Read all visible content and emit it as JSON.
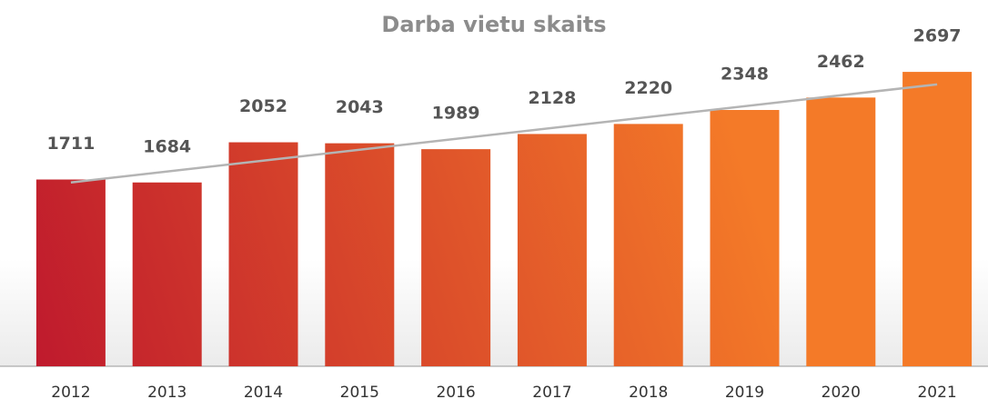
{
  "chart_data": {
    "type": "bar",
    "title": "Darba vietu skaits",
    "categories": [
      "2012",
      "2013",
      "2014",
      "2015",
      "2016",
      "2017",
      "2018",
      "2019",
      "2020",
      "2021"
    ],
    "values": [
      1711,
      1684,
      2052,
      2043,
      1989,
      2128,
      2220,
      2348,
      2462,
      2697
    ],
    "colors": [
      "#bf1a2d",
      "#f47a28"
    ],
    "trendline_color": "#b4b4b4",
    "ylim": [
      0,
      3000
    ],
    "trendline": true
  }
}
